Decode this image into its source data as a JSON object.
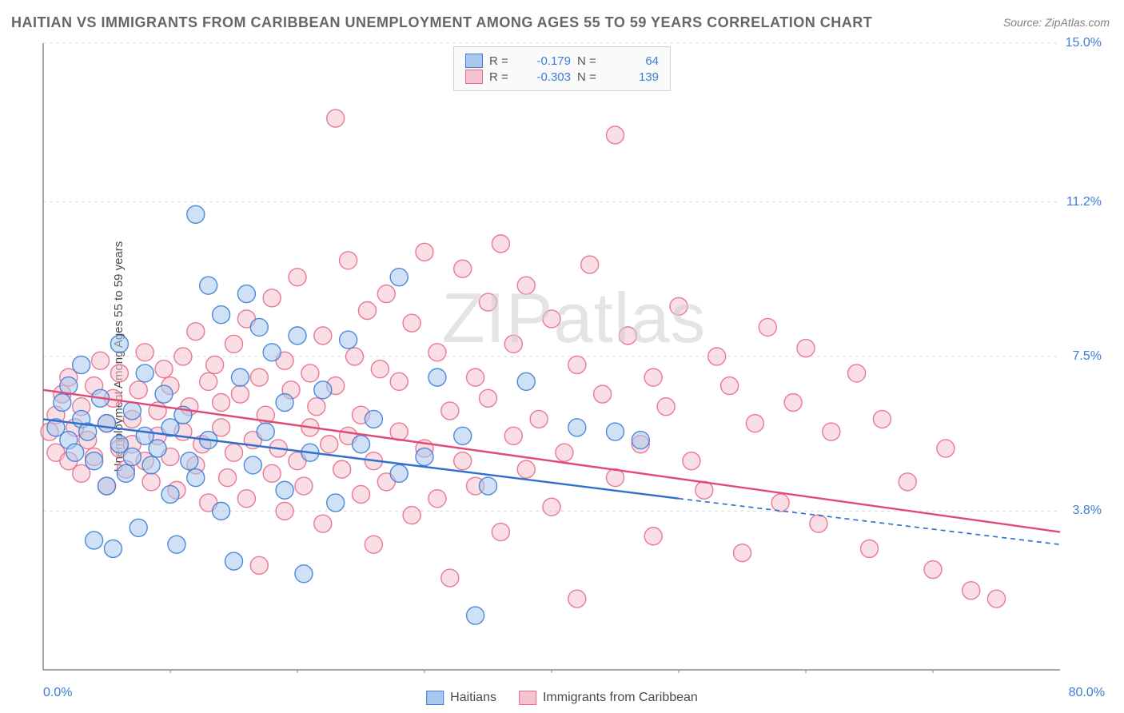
{
  "title": "HAITIAN VS IMMIGRANTS FROM CARIBBEAN UNEMPLOYMENT AMONG AGES 55 TO 59 YEARS CORRELATION CHART",
  "source": "Source: ZipAtlas.com",
  "watermark_a": "ZIP",
  "watermark_b": "atlas",
  "y_axis_label": "Unemployment Among Ages 55 to 59 years",
  "chart": {
    "type": "scatter",
    "xlim": [
      0,
      80
    ],
    "ylim": [
      0,
      15
    ],
    "x_ticks_minor": [
      10,
      20,
      30,
      40,
      50,
      60,
      70
    ],
    "x_tick_labels": {
      "min": "0.0%",
      "max": "80.0%"
    },
    "y_tick_values": [
      3.8,
      7.5,
      11.2,
      15.0
    ],
    "y_tick_labels": [
      "3.8%",
      "7.5%",
      "11.2%",
      "15.0%"
    ],
    "grid_color": "#d8d8d8",
    "axis_color": "#888888",
    "background_color": "#ffffff",
    "marker_radius": 11,
    "marker_opacity": 0.55,
    "marker_stroke_width": 1.4,
    "series": [
      {
        "name": "Haitians",
        "fill": "#a9c8ec",
        "stroke": "#3b7dd8",
        "r_value": "-0.179",
        "n_value": "64",
        "trend": {
          "x1": 0,
          "y1": 6.0,
          "x2": 50,
          "y2": 4.1,
          "dash_to_x": 80,
          "dash_to_y": 3.0,
          "color": "#2e6fcf",
          "width": 2.4
        },
        "points": [
          [
            1,
            5.8
          ],
          [
            1.5,
            6.4
          ],
          [
            2,
            5.5
          ],
          [
            2,
            6.8
          ],
          [
            2.5,
            5.2
          ],
          [
            3,
            6.0
          ],
          [
            3,
            7.3
          ],
          [
            3.5,
            5.7
          ],
          [
            4,
            3.1
          ],
          [
            4,
            5.0
          ],
          [
            4.5,
            6.5
          ],
          [
            5,
            4.4
          ],
          [
            5,
            5.9
          ],
          [
            5.5,
            2.9
          ],
          [
            6,
            5.4
          ],
          [
            6,
            7.8
          ],
          [
            6.5,
            4.7
          ],
          [
            7,
            5.1
          ],
          [
            7,
            6.2
          ],
          [
            7.5,
            3.4
          ],
          [
            8,
            5.6
          ],
          [
            8,
            7.1
          ],
          [
            8.5,
            4.9
          ],
          [
            9,
            5.3
          ],
          [
            9.5,
            6.6
          ],
          [
            10,
            4.2
          ],
          [
            10,
            5.8
          ],
          [
            10.5,
            3.0
          ],
          [
            11,
            6.1
          ],
          [
            11.5,
            5.0
          ],
          [
            12,
            10.9
          ],
          [
            12,
            4.6
          ],
          [
            13,
            9.2
          ],
          [
            13,
            5.5
          ],
          [
            14,
            3.8
          ],
          [
            14,
            8.5
          ],
          [
            15,
            2.6
          ],
          [
            15.5,
            7.0
          ],
          [
            16,
            9.0
          ],
          [
            16.5,
            4.9
          ],
          [
            17,
            8.2
          ],
          [
            17.5,
            5.7
          ],
          [
            18,
            7.6
          ],
          [
            19,
            4.3
          ],
          [
            19,
            6.4
          ],
          [
            20,
            8.0
          ],
          [
            20.5,
            2.3
          ],
          [
            21,
            5.2
          ],
          [
            22,
            6.7
          ],
          [
            23,
            4.0
          ],
          [
            24,
            7.9
          ],
          [
            25,
            5.4
          ],
          [
            26,
            6.0
          ],
          [
            28,
            9.4
          ],
          [
            28,
            4.7
          ],
          [
            30,
            5.1
          ],
          [
            31,
            7.0
          ],
          [
            33,
            5.6
          ],
          [
            34,
            1.3
          ],
          [
            35,
            4.4
          ],
          [
            38,
            6.9
          ],
          [
            42,
            5.8
          ],
          [
            45,
            5.7
          ],
          [
            47,
            5.5
          ]
        ]
      },
      {
        "name": "Immigrants from Caribbean",
        "fill": "#f5c2cf",
        "stroke": "#e86b8a",
        "r_value": "-0.303",
        "n_value": "139",
        "trend": {
          "x1": 0,
          "y1": 6.7,
          "x2": 80,
          "y2": 3.3,
          "color": "#e24a74",
          "width": 2.4
        },
        "points": [
          [
            0.5,
            5.7
          ],
          [
            1,
            6.1
          ],
          [
            1,
            5.2
          ],
          [
            1.5,
            6.6
          ],
          [
            2,
            5.0
          ],
          [
            2,
            7.0
          ],
          [
            2.5,
            5.8
          ],
          [
            3,
            6.3
          ],
          [
            3,
            4.7
          ],
          [
            3.5,
            5.5
          ],
          [
            4,
            6.8
          ],
          [
            4,
            5.1
          ],
          [
            4.5,
            7.4
          ],
          [
            5,
            5.9
          ],
          [
            5,
            4.4
          ],
          [
            5.5,
            6.5
          ],
          [
            6,
            5.3
          ],
          [
            6,
            7.1
          ],
          [
            6.5,
            4.8
          ],
          [
            7,
            6.0
          ],
          [
            7,
            5.4
          ],
          [
            7.5,
            6.7
          ],
          [
            8,
            5.0
          ],
          [
            8,
            7.6
          ],
          [
            8.5,
            4.5
          ],
          [
            9,
            6.2
          ],
          [
            9,
            5.6
          ],
          [
            9.5,
            7.2
          ],
          [
            10,
            5.1
          ],
          [
            10,
            6.8
          ],
          [
            10.5,
            4.3
          ],
          [
            11,
            7.5
          ],
          [
            11,
            5.7
          ],
          [
            11.5,
            6.3
          ],
          [
            12,
            4.9
          ],
          [
            12,
            8.1
          ],
          [
            12.5,
            5.4
          ],
          [
            13,
            6.9
          ],
          [
            13,
            4.0
          ],
          [
            13.5,
            7.3
          ],
          [
            14,
            5.8
          ],
          [
            14,
            6.4
          ],
          [
            14.5,
            4.6
          ],
          [
            15,
            7.8
          ],
          [
            15,
            5.2
          ],
          [
            15.5,
            6.6
          ],
          [
            16,
            4.1
          ],
          [
            16,
            8.4
          ],
          [
            16.5,
            5.5
          ],
          [
            17,
            7.0
          ],
          [
            17,
            2.5
          ],
          [
            17.5,
            6.1
          ],
          [
            18,
            4.7
          ],
          [
            18,
            8.9
          ],
          [
            18.5,
            5.3
          ],
          [
            19,
            7.4
          ],
          [
            19,
            3.8
          ],
          [
            19.5,
            6.7
          ],
          [
            20,
            5.0
          ],
          [
            20,
            9.4
          ],
          [
            20.5,
            4.4
          ],
          [
            21,
            7.1
          ],
          [
            21,
            5.8
          ],
          [
            21.5,
            6.3
          ],
          [
            22,
            3.5
          ],
          [
            22,
            8.0
          ],
          [
            22.5,
            5.4
          ],
          [
            23,
            13.2
          ],
          [
            23,
            6.8
          ],
          [
            23.5,
            4.8
          ],
          [
            24,
            9.8
          ],
          [
            24,
            5.6
          ],
          [
            24.5,
            7.5
          ],
          [
            25,
            4.2
          ],
          [
            25,
            6.1
          ],
          [
            25.5,
            8.6
          ],
          [
            26,
            5.0
          ],
          [
            26,
            3.0
          ],
          [
            26.5,
            7.2
          ],
          [
            27,
            4.5
          ],
          [
            27,
            9.0
          ],
          [
            28,
            5.7
          ],
          [
            28,
            6.9
          ],
          [
            29,
            3.7
          ],
          [
            29,
            8.3
          ],
          [
            30,
            5.3
          ],
          [
            30,
            10.0
          ],
          [
            31,
            4.1
          ],
          [
            31,
            7.6
          ],
          [
            32,
            6.2
          ],
          [
            32,
            2.2
          ],
          [
            33,
            9.6
          ],
          [
            33,
            5.0
          ],
          [
            34,
            7.0
          ],
          [
            34,
            4.4
          ],
          [
            35,
            8.8
          ],
          [
            35,
            6.5
          ],
          [
            36,
            3.3
          ],
          [
            36,
            10.2
          ],
          [
            37,
            5.6
          ],
          [
            37,
            7.8
          ],
          [
            38,
            4.8
          ],
          [
            38,
            9.2
          ],
          [
            39,
            6.0
          ],
          [
            40,
            3.9
          ],
          [
            40,
            8.4
          ],
          [
            41,
            5.2
          ],
          [
            42,
            7.3
          ],
          [
            42,
            1.7
          ],
          [
            43,
            9.7
          ],
          [
            44,
            6.6
          ],
          [
            45,
            4.6
          ],
          [
            45,
            12.8
          ],
          [
            46,
            8.0
          ],
          [
            47,
            5.4
          ],
          [
            48,
            7.0
          ],
          [
            48,
            3.2
          ],
          [
            49,
            6.3
          ],
          [
            50,
            8.7
          ],
          [
            51,
            5.0
          ],
          [
            52,
            4.3
          ],
          [
            53,
            7.5
          ],
          [
            54,
            6.8
          ],
          [
            55,
            2.8
          ],
          [
            56,
            5.9
          ],
          [
            57,
            8.2
          ],
          [
            58,
            4.0
          ],
          [
            59,
            6.4
          ],
          [
            60,
            7.7
          ],
          [
            61,
            3.5
          ],
          [
            62,
            5.7
          ],
          [
            64,
            7.1
          ],
          [
            65,
            2.9
          ],
          [
            66,
            6.0
          ],
          [
            68,
            4.5
          ],
          [
            70,
            2.4
          ],
          [
            71,
            5.3
          ],
          [
            73,
            1.9
          ],
          [
            75,
            1.7
          ]
        ]
      }
    ]
  },
  "legend_top_labels": {
    "r": "R =",
    "n": "N ="
  },
  "legend_bottom": {
    "items": [
      {
        "label": "Haitians",
        "fill": "#a9c8ec",
        "stroke": "#3b7dd8"
      },
      {
        "label": "Immigrants from Caribbean",
        "fill": "#f5c2cf",
        "stroke": "#e86b8a"
      }
    ]
  }
}
